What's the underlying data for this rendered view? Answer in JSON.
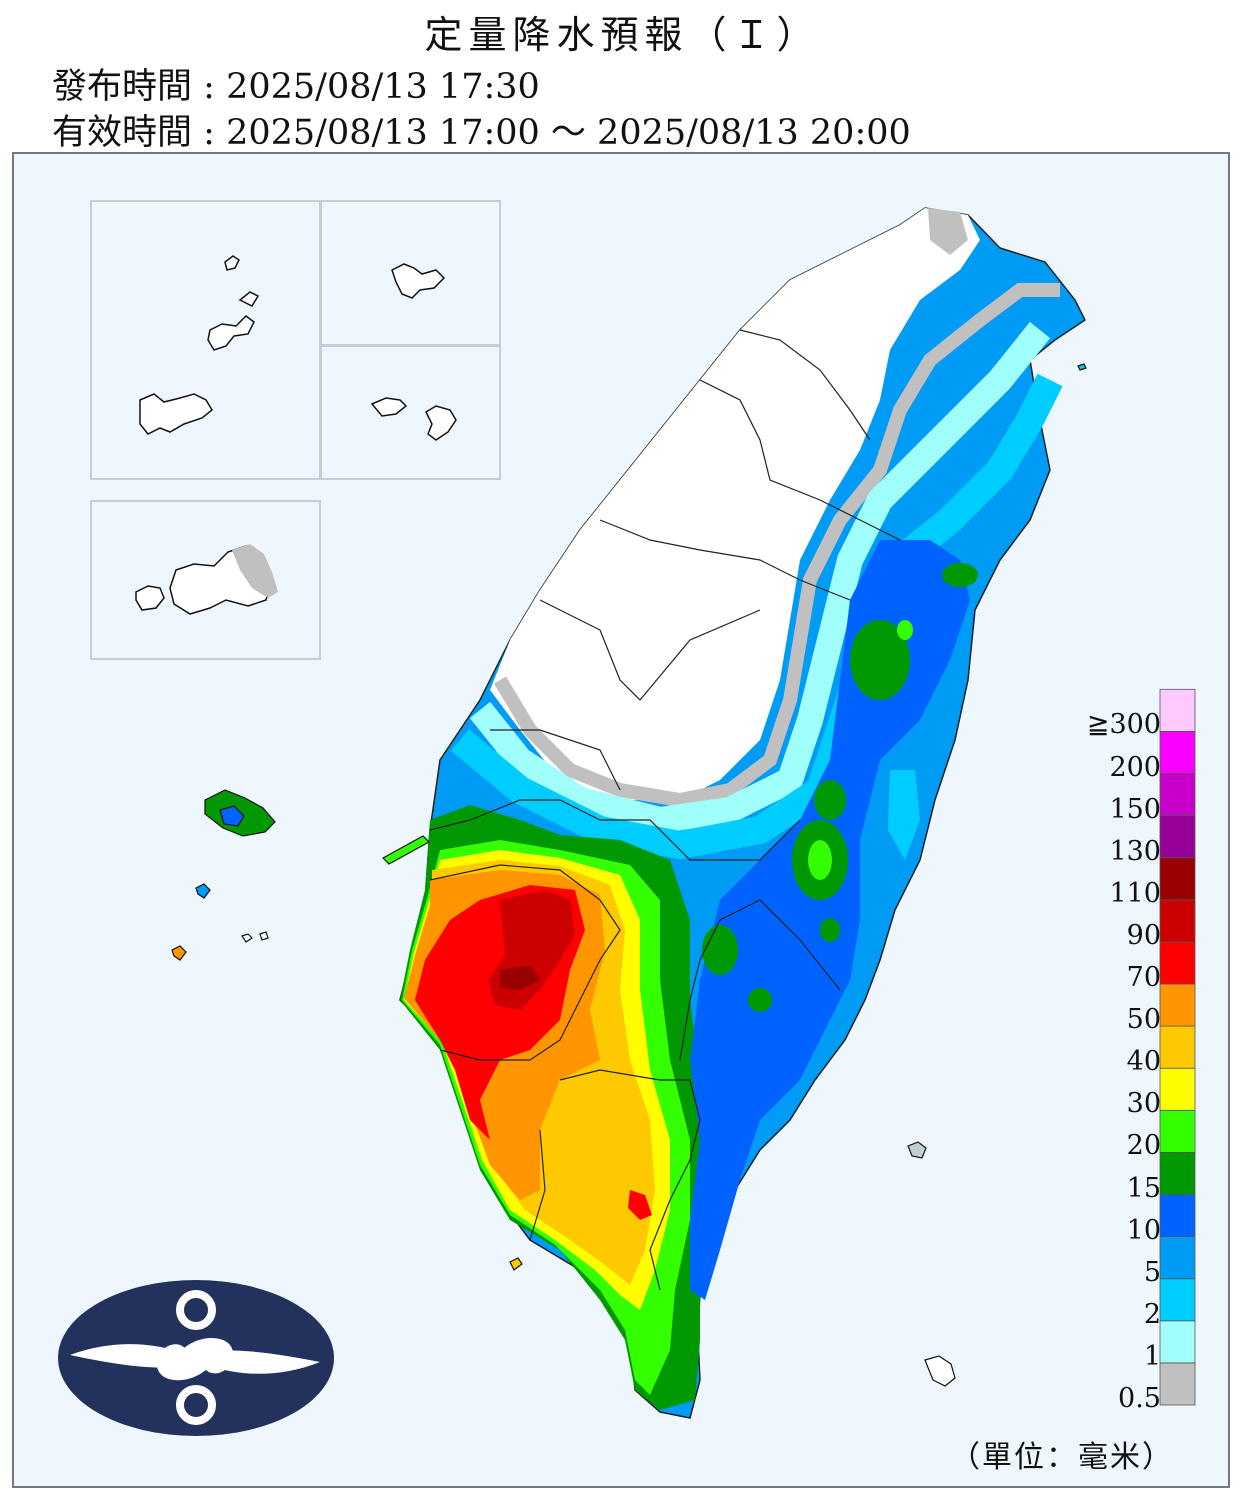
{
  "header": {
    "title": "定量降水預報（Ｉ）",
    "issue_label": "發布時間",
    "issue_time": "2025/08/13 17:30",
    "valid_label": "有效時間",
    "valid_time": "2025/08/13 17:00 ～ 2025/08/13 20:00"
  },
  "legend": {
    "unit_label": "（單位：毫米）",
    "bins": [
      {
        "label": "0.5",
        "color": "#c0c0c0"
      },
      {
        "label": "1",
        "color": "#a0fffa"
      },
      {
        "label": "2",
        "color": "#00cdff"
      },
      {
        "label": "5",
        "color": "#009bf5"
      },
      {
        "label": "10",
        "color": "#0063ff"
      },
      {
        "label": "15",
        "color": "#019801"
      },
      {
        "label": "20",
        "color": "#33ff00"
      },
      {
        "label": "30",
        "color": "#fffd00"
      },
      {
        "label": "40",
        "color": "#ffc900"
      },
      {
        "label": "50",
        "color": "#ff9500"
      },
      {
        "label": "70",
        "color": "#ff0000"
      },
      {
        "label": "90",
        "color": "#cc0000"
      },
      {
        "label": "110",
        "color": "#990000"
      },
      {
        "label": "130",
        "color": "#960099"
      },
      {
        "label": "150",
        "color": "#c900cc"
      },
      {
        "label": "200",
        "color": "#fb00ff"
      },
      {
        "label": "≧300",
        "color": "#fdc9ff"
      }
    ]
  },
  "logo": {
    "name": "cwa-logo-icon"
  }
}
